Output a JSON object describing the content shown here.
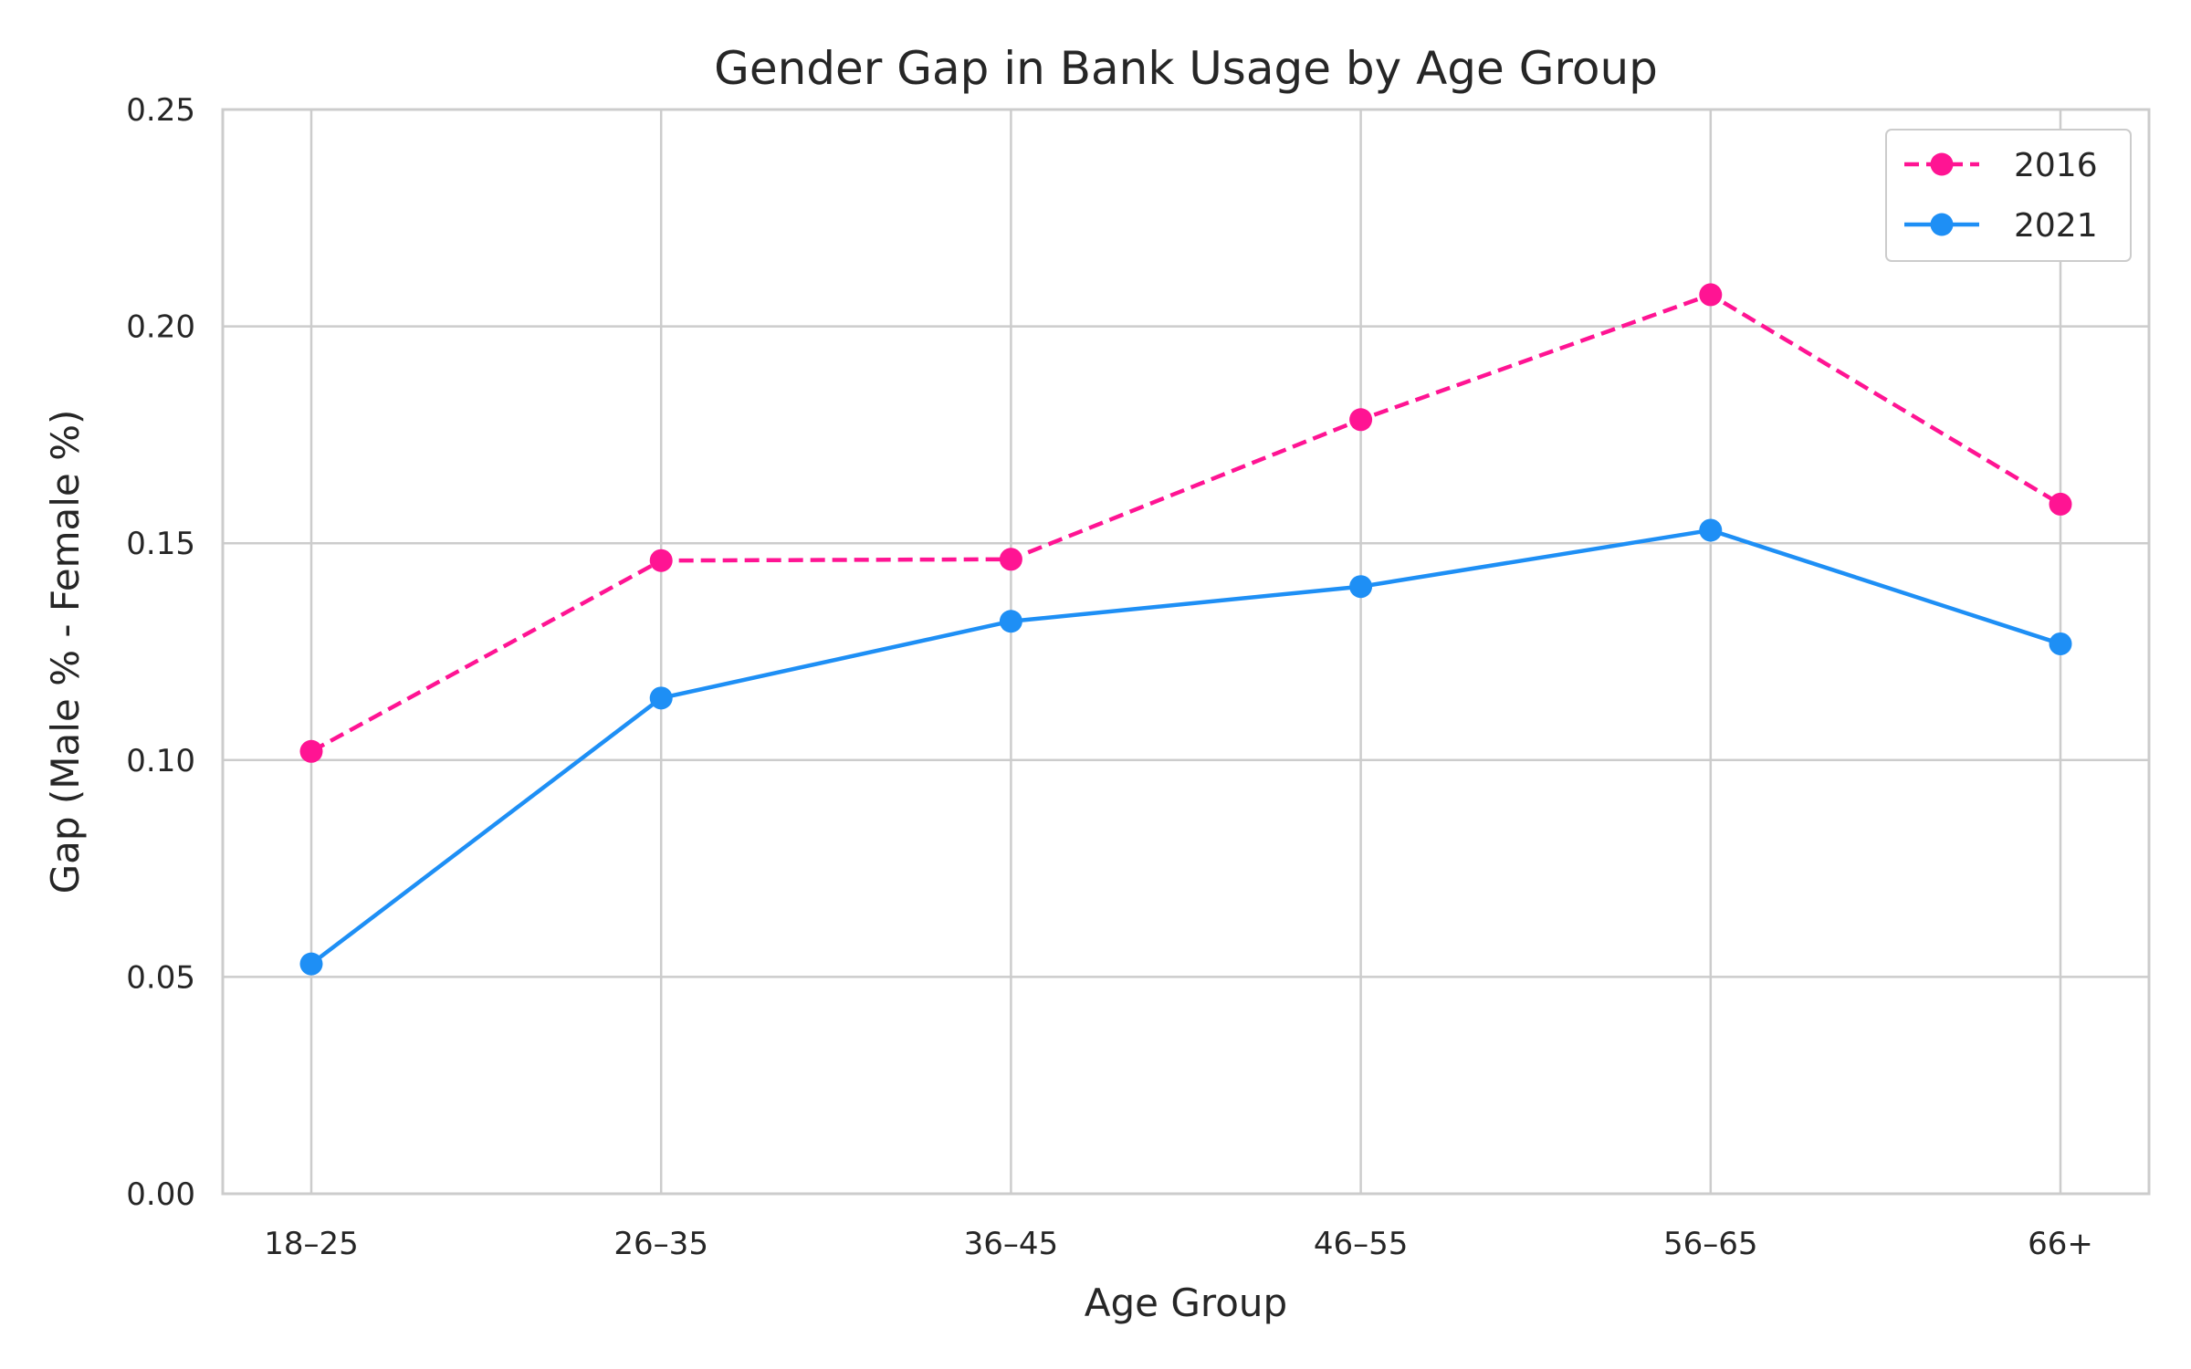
{
  "chart_data": {
    "type": "line",
    "title": "Gender Gap in Bank Usage by Age Group",
    "xlabel": "Age Group",
    "ylabel": "Gap (Male % - Female %)",
    "categories": [
      "18–25",
      "26–35",
      "36–45",
      "46–55",
      "56–65",
      "66+"
    ],
    "ylim": [
      0,
      0.25
    ],
    "yticks": [
      "0.00",
      "0.05",
      "0.10",
      "0.15",
      "0.20",
      "0.25"
    ],
    "ytick_values": [
      0,
      0.05,
      0.1,
      0.15,
      0.2,
      0.25
    ],
    "grid": true,
    "legend_position": "top-right",
    "series": [
      {
        "name": "2016",
        "values": [
          0.102,
          0.146,
          0.1463,
          0.1785,
          0.2073,
          0.159
        ],
        "color": "#ff1493",
        "style": "dashed",
        "marker": "circle"
      },
      {
        "name": "2021",
        "values": [
          0.053,
          0.1143,
          0.132,
          0.14,
          0.153,
          0.1268
        ],
        "color": "#1e8ff5",
        "style": "solid",
        "marker": "circle"
      }
    ]
  }
}
